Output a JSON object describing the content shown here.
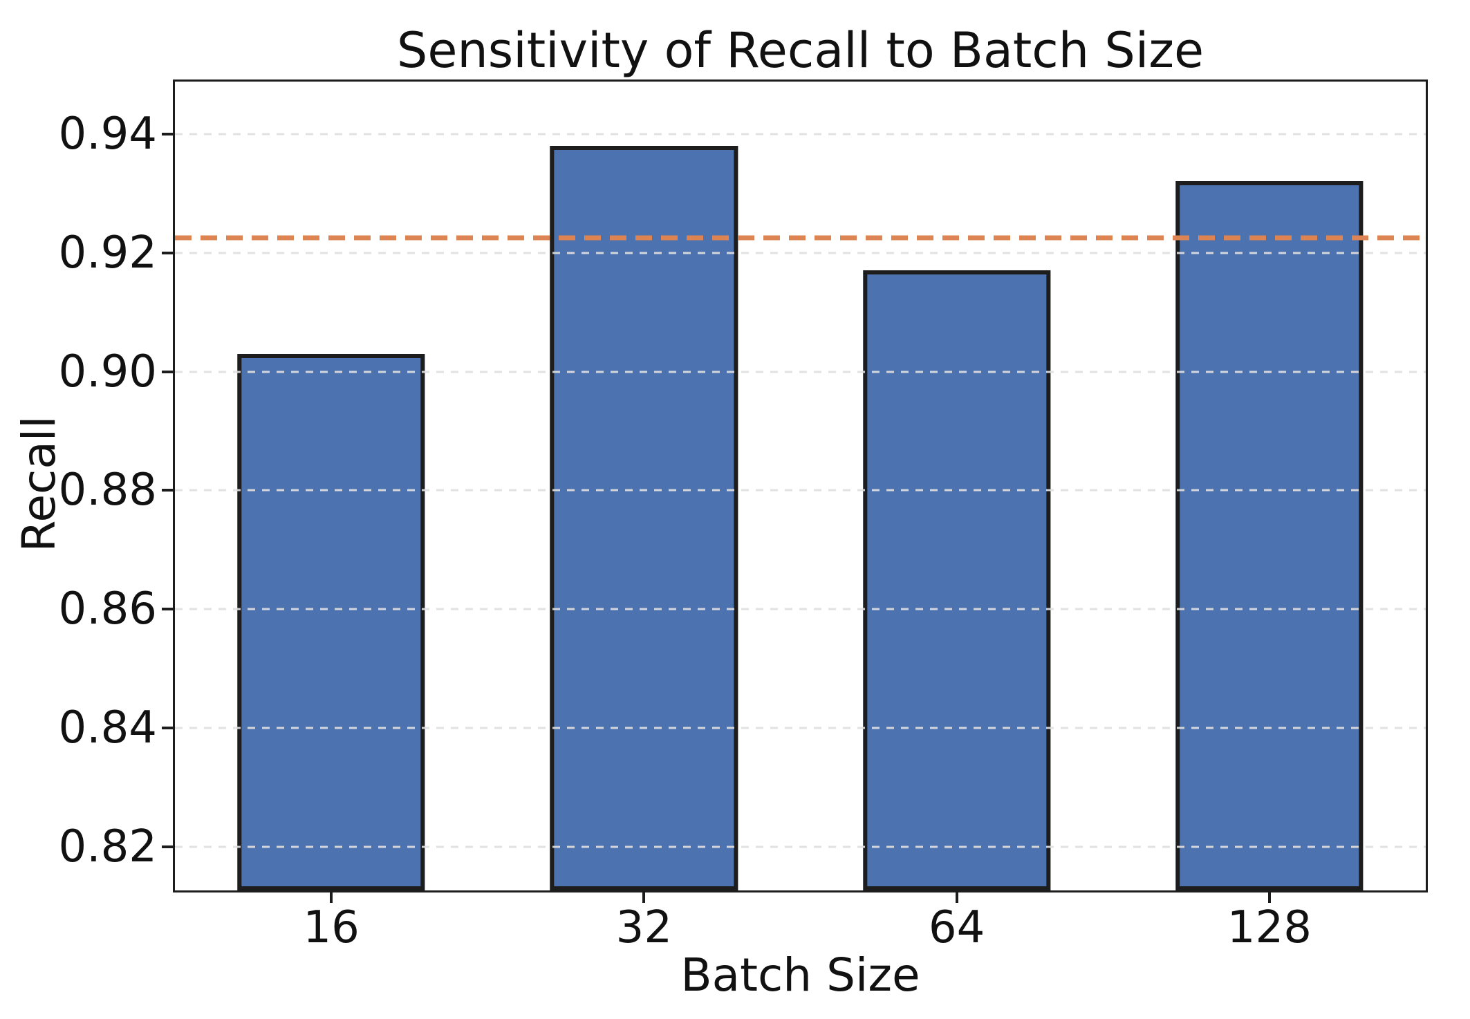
{
  "chart_data": {
    "type": "bar",
    "title": "Sensitivity of Recall to Batch Size",
    "xlabel": "Batch Size",
    "ylabel": "Recall",
    "categories": [
      "16",
      "32",
      "64",
      "128"
    ],
    "values": [
      0.903,
      0.938,
      0.917,
      0.932
    ],
    "ylim": [
      0.8127,
      0.9488
    ],
    "yticks": [
      0.82,
      0.84,
      0.86,
      0.88,
      0.9,
      0.92,
      0.94
    ],
    "ytick_labels": [
      "0.82",
      "0.84",
      "0.86",
      "0.88",
      "0.90",
      "0.92",
      "0.94"
    ],
    "grid": "horizontal-dashed",
    "legend": "none",
    "reference_line": {
      "value": 0.9225,
      "style": "dashed",
      "color": "#DD8452"
    },
    "bar_color": "#4C72B0",
    "bar_edge_color": "#1d1d1d",
    "gridline_color": "#dfdfdf",
    "bar_width_fraction": 0.6
  }
}
